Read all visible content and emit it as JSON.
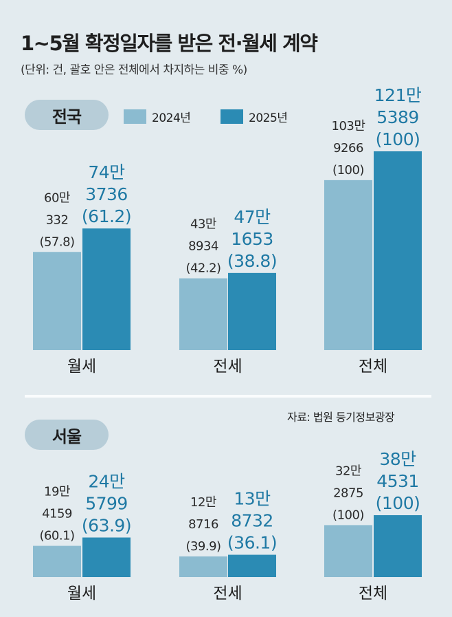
{
  "title": "1~5월 확정일자를 받은 전·월세 계약",
  "subtitle": "(단위: 건, 괄호 안은 전체에서 차지하는 비중 %)",
  "legend": {
    "series_2024": "2024년",
    "series_2025": "2025년"
  },
  "source": "자료: 법원 등기정보광장",
  "colors": {
    "series_2024": "#8bbbd0",
    "series_2025": "#2b8bb4",
    "label_2025": "#1f79a4"
  },
  "chart_data": [
    {
      "type": "bar",
      "region": "전국",
      "categories": [
        "월세",
        "전세",
        "전체"
      ],
      "series": [
        {
          "name": "2024년",
          "values": [
            600332,
            438934,
            1039266
          ],
          "share": [
            57.8,
            42.2,
            100
          ],
          "labels": [
            [
              "60만",
              "332",
              "(57.8)"
            ],
            [
              "43만",
              "8934",
              "(42.2)"
            ],
            [
              "103만",
              "9266",
              "(100)"
            ]
          ]
        },
        {
          "name": "2025년",
          "values": [
            743736,
            471653,
            1215389
          ],
          "share": [
            61.2,
            38.8,
            100
          ],
          "labels": [
            [
              "74만",
              "3736",
              "(61.2)"
            ],
            [
              "47만",
              "1653",
              "(38.8)"
            ],
            [
              "121만",
              "5389",
              "(100)"
            ]
          ]
        }
      ]
    },
    {
      "type": "bar",
      "region": "서울",
      "categories": [
        "월세",
        "전세",
        "전체"
      ],
      "series": [
        {
          "name": "2024년",
          "values": [
            194159,
            128716,
            322875
          ],
          "share": [
            60.1,
            39.9,
            100
          ],
          "labels": [
            [
              "19만",
              "4159",
              "(60.1)"
            ],
            [
              "12만",
              "8716",
              "(39.9)"
            ],
            [
              "32만",
              "2875",
              "(100)"
            ]
          ]
        },
        {
          "name": "2025년",
          "values": [
            245799,
            138732,
            384531
          ],
          "share": [
            63.9,
            36.1,
            100
          ],
          "labels": [
            [
              "24만",
              "5799",
              "(63.9)"
            ],
            [
              "13만",
              "8732",
              "(36.1)"
            ],
            [
              "38만",
              "4531",
              "(100)"
            ]
          ]
        }
      ]
    }
  ]
}
